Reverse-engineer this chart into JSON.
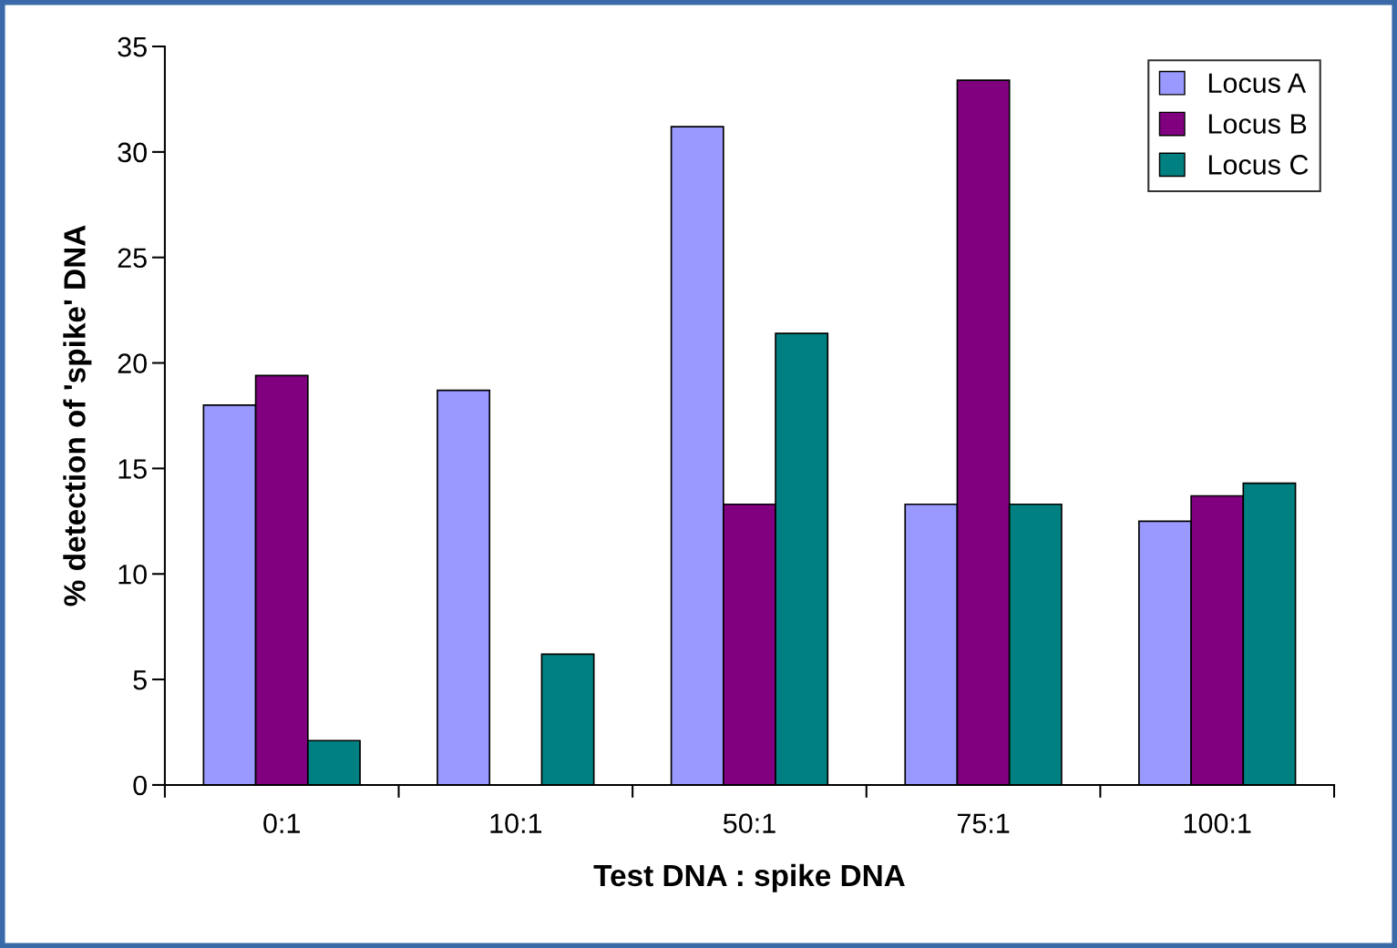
{
  "chart_data": {
    "type": "bar",
    "xlabel": "Test DNA : spike DNA",
    "ylabel": "% detection of 'spike' DNA",
    "categories": [
      "0:1",
      "10:1",
      "50:1",
      "75:1",
      "100:1"
    ],
    "series": [
      {
        "name": "Locus A",
        "color": "#9999ff",
        "values": [
          18.0,
          18.7,
          31.2,
          13.3,
          12.5
        ]
      },
      {
        "name": "Locus B",
        "color": "#800080",
        "values": [
          19.4,
          null,
          13.3,
          33.4,
          13.7
        ]
      },
      {
        "name": "Locus C",
        "color": "#008080",
        "values": [
          2.1,
          6.2,
          21.4,
          13.3,
          14.3
        ]
      }
    ],
    "ylim": [
      0,
      35
    ],
    "yticks": [
      0,
      5,
      10,
      15,
      20,
      25,
      30,
      35
    ],
    "grid": false,
    "legend": "top right"
  }
}
